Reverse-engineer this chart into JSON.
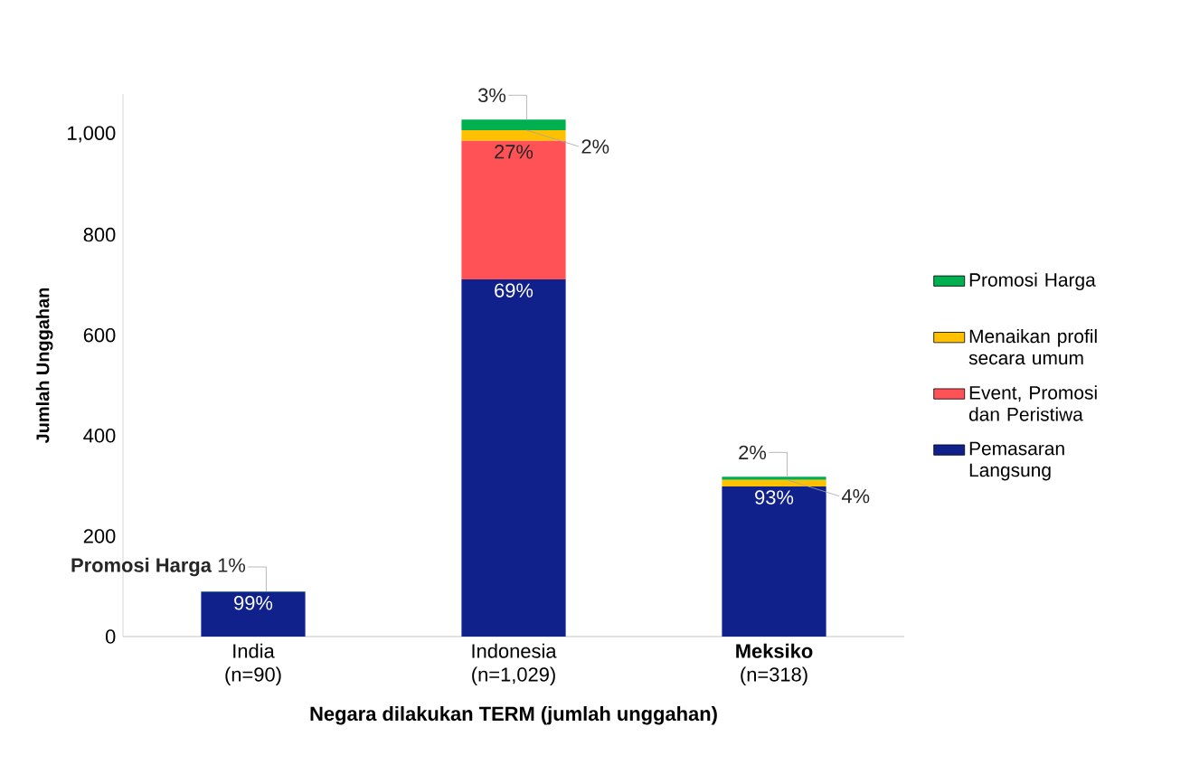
{
  "chart_data": {
    "type": "bar",
    "stacked": true,
    "xlabel": "Negara dilakukan TERM (jumlah unggahan)",
    "ylabel": "Jumlah Unggahan",
    "categories": [
      "India (n=90)",
      "Indonesia (n=1,029)",
      "**Meksiko** (n=318)"
    ],
    "ylim": [
      0,
      1080
    ],
    "yticks": [
      0,
      200,
      400,
      600,
      800,
      {
        "value": 1000,
        "label": "1,000"
      }
    ],
    "legend": "right",
    "series": [
      {
        "name": "Pemasaran Langsung",
        "color": "#10218b",
        "values": [
          89,
          711,
          299
        ]
      },
      {
        "name": "Event, Promosi dan Peristiwa",
        "color": "#ff5257",
        "values": [
          0,
          276,
          0
        ]
      },
      {
        "name": "Menaikan profil secara umum",
        "color": "#ffc000",
        "values": [
          0,
          21,
          13
        ]
      },
      {
        "name": "Promosi Harga",
        "color": "#00b050",
        "values": [
          1,
          21,
          6
        ]
      }
    ],
    "annotations": [
      {
        "text": "99%",
        "x": "India (n=90)",
        "y": 89
      },
      {
        "text": "**Promosi Harga** 1%",
        "x": "India (n=90)",
        "y": 90
      },
      {
        "text": "69%",
        "x": "Indonesia (n=1,029)",
        "y": 711
      },
      {
        "text": "27%",
        "x": "Indonesia (n=1,029)",
        "y": 987
      },
      {
        "text": "2%",
        "x": "Indonesia (n=1,029)",
        "y": 1008
      },
      {
        "text": "3%",
        "x": "Indonesia (n=1,029)",
        "y": 1029
      },
      {
        "text": "93%",
        "x": "**Meksiko** (n=318)",
        "y": 299
      },
      {
        "text": "4%",
        "x": "**Meksiko** (n=318)",
        "y": 312
      },
      {
        "text": "2%",
        "x": "**Meksiko** (n=318)",
        "y": 318
      }
    ]
  }
}
